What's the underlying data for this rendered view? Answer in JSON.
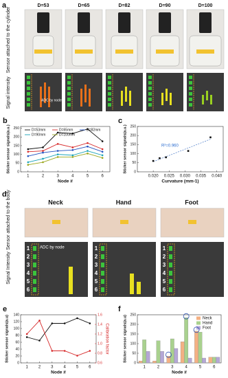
{
  "panel_a": {
    "label": "a",
    "diameters": [
      "D=53",
      "D=65",
      "D=82",
      "D=90",
      "D=100"
    ],
    "row_photo": "Sensor attached to the cylinder",
    "row_signal": "Signal intensity",
    "adc_note": "ADC by node"
  },
  "panel_d": {
    "label": "d",
    "sites": [
      "Neck",
      "Hand",
      "Foot"
    ],
    "row_photo": "Sensor attached to the body",
    "row_signal": "Signal Intensity",
    "adc_note": "ADC by node",
    "nodes": [
      "1",
      "2",
      "3",
      "4",
      "5",
      "6"
    ]
  },
  "chart_data": [
    {
      "type": "line",
      "panel": "b",
      "x": [
        1,
        2,
        3,
        4,
        5,
        6
      ],
      "xlim": [
        0.5,
        6.5
      ],
      "xticks": [
        1,
        2,
        3,
        4,
        5,
        6
      ],
      "ylim": [
        0,
        260
      ],
      "yticks": [
        0,
        50,
        100,
        150,
        200,
        250
      ],
      "xlabel": "Node #",
      "ylabel": "Sticker sensor signals(a.u.)",
      "series": [
        {
          "name": "D=53mm",
          "color": "#111111",
          "values": [
            130,
            140,
            225,
            220,
            245,
            175
          ]
        },
        {
          "name": "D=65mm",
          "color": "#d62728",
          "values": [
            115,
            120,
            160,
            140,
            165,
            130
          ]
        },
        {
          "name": "D=82mm",
          "color": "#1f4fbf",
          "values": [
            90,
            110,
            120,
            125,
            145,
            115
          ]
        },
        {
          "name": "D=90mm",
          "color": "#17a2b8",
          "values": [
            55,
            75,
            100,
            95,
            120,
            95
          ]
        },
        {
          "name": "D=100mm",
          "color": "#9aa61c",
          "values": [
            40,
            55,
            85,
            85,
            105,
            80
          ]
        }
      ]
    },
    {
      "type": "scatter",
      "panel": "c",
      "x": [
        0.02,
        0.022,
        0.024,
        0.031,
        0.038
      ],
      "values": [
        60,
        75,
        80,
        115,
        190
      ],
      "color": "#111111",
      "xlim": [
        0.015,
        0.042
      ],
      "xticks": [
        {
          "value": 0.02,
          "label": "0.020"
        },
        {
          "value": 0.025,
          "label": "0.025"
        },
        {
          "value": 0.03,
          "label": "0.030"
        },
        {
          "value": 0.035,
          "label": "0.035"
        },
        {
          "value": 0.04,
          "label": "0.040"
        }
      ],
      "ylim": [
        0,
        250
      ],
      "yticks": [
        0,
        50,
        100,
        150,
        200,
        250
      ],
      "xlabel": "Curvature (mm-1)",
      "ylabel": "Sticker sensor signals(a.u.)",
      "annotation": "R²=0.960"
    },
    {
      "type": "line",
      "panel": "e",
      "x": [
        1,
        2,
        3,
        4,
        5,
        6
      ],
      "xlim": [
        0.5,
        6.5
      ],
      "xticks": [
        1,
        2,
        3,
        4,
        5,
        6
      ],
      "ylim": [
        0,
        140
      ],
      "yticks": [
        0,
        20,
        40,
        60,
        80,
        100,
        120,
        140
      ],
      "y2lim": [
        0.6,
        1.6
      ],
      "y2ticks": [
        {
          "value": 0.6,
          "label": "0.6"
        },
        {
          "value": 0.8,
          "label": "0.8"
        },
        {
          "value": 1.0,
          "label": "1.0"
        },
        {
          "value": 1.2,
          "label": "1.2"
        },
        {
          "value": 1.4,
          "label": "1.4"
        },
        {
          "value": 1.6,
          "label": "1.6"
        }
      ],
      "xlabel": "Node #",
      "ylabel": "Sticker sensor signals(a.u)",
      "y2label": "Calibration factor",
      "series": [
        {
          "color": "#111111",
          "values": [
            75,
            65,
            115,
            115,
            130,
            115
          ]
        },
        {
          "color": "#d62728",
          "axis": "y2",
          "values": [
            1.2,
            1.48,
            0.85,
            0.85,
            0.75,
            0.85
          ]
        }
      ]
    },
    {
      "type": "bar",
      "panel": "f",
      "categories": [
        "1",
        "2",
        "3",
        "4",
        "5",
        "6"
      ],
      "ylim": [
        0,
        250
      ],
      "yticks": [
        0,
        50,
        100,
        150,
        200,
        250
      ],
      "xlabel": "Node #",
      "ylabel": "Sticker sensor signals(a.u)",
      "series": [
        {
          "name": "Neck",
          "color": "#f4b183",
          "values": [
            10,
            10,
            35,
            110,
            165,
            30
          ]
        },
        {
          "name": "Hand",
          "color": "#a9d18e",
          "values": [
            120,
            115,
            125,
            235,
            160,
            30
          ]
        },
        {
          "name": "Foot",
          "color": "#b4a7d6",
          "values": [
            60,
            60,
            75,
            25,
            25,
            30
          ]
        }
      ]
    }
  ]
}
